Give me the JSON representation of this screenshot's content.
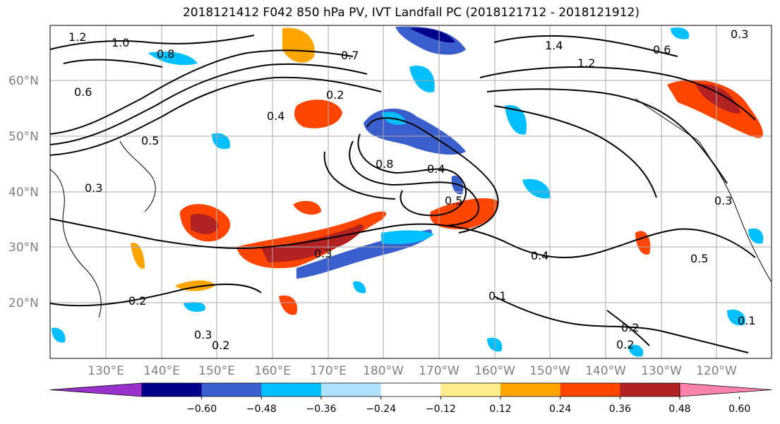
{
  "title": "2018121412 F042 850 hPa PV, IVT Landfall PC (2018121712 - 2018121912)",
  "lat_labels": [
    "60°N",
    "50°N",
    "40°N",
    "30°N",
    "20°N"
  ],
  "lon_labels": [
    "130°E",
    "140°E",
    "150°E",
    "160°E",
    "170°E",
    "180°W",
    "170°W",
    "160°W",
    "150°W",
    "140°W",
    "130°W",
    "120°W"
  ],
  "colorbar": {
    "colors": [
      "#9932cc",
      "#00008b",
      "#3a5fcd",
      "#00bfff",
      "#b0e2ff",
      "#ffffff",
      "#ffec8b",
      "#ffa500",
      "#ff4500",
      "#b22222",
      "#ff82ab"
    ],
    "tick_labels": [
      "-0.60",
      "-0.48",
      "-0.36",
      "-0.24",
      "-0.12",
      "0.12",
      "0.24",
      "0.36",
      "0.48",
      "0.60"
    ]
  },
  "contour_labels": [
    "1.2",
    "1.0",
    "0.8",
    "0.6",
    "0.7",
    "1.4",
    "1.2",
    "0.3",
    "0.6",
    "0.2",
    "0.4",
    "0.5",
    "0.8",
    "0.4",
    "0.5",
    "0.3",
    "0.3",
    "0.2",
    "0.3",
    "0.2",
    "0.4",
    "0.5",
    "0.2",
    "0.2",
    "0.1",
    "0.3",
    "0.1"
  ]
}
